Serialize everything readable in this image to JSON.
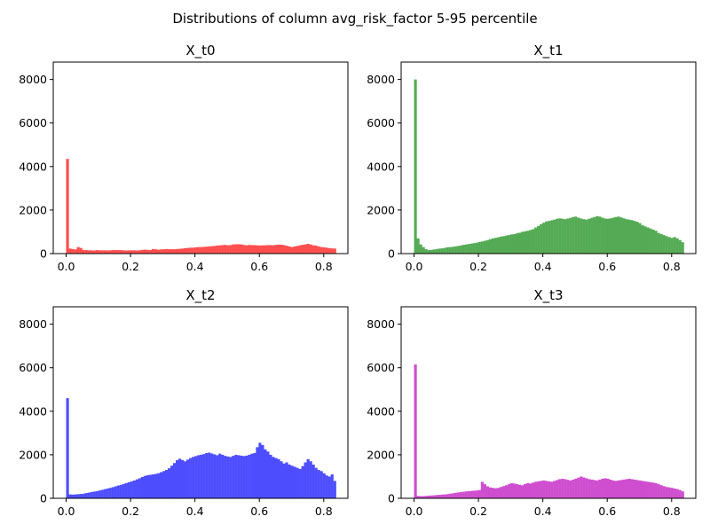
{
  "figure": {
    "title": "Distributions of column avg_risk_factor 5-95 percentile"
  },
  "chart_data": [
    {
      "type": "bar",
      "title": "X_t0",
      "color": "#ff4444",
      "xlim": [
        -0.04,
        0.875
      ],
      "ylim": [
        0,
        8800
      ],
      "xticks": [
        0.0,
        0.2,
        0.4,
        0.6,
        0.8
      ],
      "xtick_labels": [
        "0.0",
        "0.2",
        "0.4",
        "0.6",
        "0.8"
      ],
      "yticks": [
        0,
        2000,
        4000,
        6000,
        8000
      ],
      "ytick_labels": [
        "0",
        "2000",
        "4000",
        "6000",
        "8000"
      ],
      "bin_start": 0.0,
      "bin_width": 0.0083,
      "values": [
        4350,
        230,
        210,
        190,
        300,
        260,
        170,
        160,
        150,
        150,
        140,
        160,
        150,
        150,
        150,
        145,
        150,
        160,
        160,
        160,
        160,
        150,
        140,
        150,
        150,
        150,
        140,
        155,
        170,
        180,
        170,
        160,
        210,
        200,
        180,
        190,
        200,
        210,
        200,
        200,
        200,
        210,
        220,
        230,
        250,
        260,
        270,
        270,
        290,
        300,
        300,
        310,
        320,
        330,
        340,
        350,
        370,
        380,
        390,
        400,
        380,
        390,
        420,
        430,
        430,
        420,
        400,
        380,
        400,
        390,
        390,
        380,
        370,
        380,
        380,
        390,
        390,
        380,
        400,
        410,
        410,
        390,
        360,
        330,
        300,
        330,
        350,
        380,
        400,
        420,
        450,
        420,
        380,
        370,
        330,
        300,
        290,
        270,
        250,
        240,
        230
      ]
    },
    {
      "type": "bar",
      "title": "X_t1",
      "color": "#4ca64c",
      "xlim": [
        -0.04,
        0.875
      ],
      "ylim": [
        0,
        8800
      ],
      "xticks": [
        0.0,
        0.2,
        0.4,
        0.6,
        0.8
      ],
      "xtick_labels": [
        "0.0",
        "0.2",
        "0.4",
        "0.6",
        "0.8"
      ],
      "yticks": [
        0,
        2000,
        4000,
        6000,
        8000
      ],
      "ytick_labels": [
        "0",
        "2000",
        "4000",
        "6000",
        "8000"
      ],
      "bin_start": 0.0,
      "bin_width": 0.0083,
      "values": [
        8000,
        700,
        420,
        300,
        200,
        160,
        170,
        190,
        210,
        230,
        240,
        260,
        290,
        300,
        310,
        330,
        350,
        370,
        400,
        420,
        440,
        460,
        480,
        500,
        530,
        560,
        590,
        620,
        660,
        700,
        720,
        750,
        780,
        800,
        830,
        850,
        880,
        900,
        930,
        960,
        1000,
        1020,
        1050,
        1080,
        1120,
        1200,
        1270,
        1350,
        1420,
        1480,
        1500,
        1530,
        1560,
        1600,
        1620,
        1600,
        1580,
        1610,
        1640,
        1680,
        1700,
        1650,
        1610,
        1580,
        1560,
        1600,
        1640,
        1680,
        1720,
        1700,
        1650,
        1610,
        1600,
        1620,
        1650,
        1680,
        1700,
        1660,
        1620,
        1580,
        1560,
        1540,
        1500,
        1460,
        1400,
        1300,
        1250,
        1200,
        1150,
        1100,
        1050,
        950,
        900,
        850,
        800,
        760,
        720,
        760,
        700,
        620,
        520
      ]
    },
    {
      "type": "bar",
      "title": "X_t2",
      "color": "#4444ff",
      "xlim": [
        -0.04,
        0.875
      ],
      "ylim": [
        0,
        8800
      ],
      "xticks": [
        0.0,
        0.2,
        0.4,
        0.6,
        0.8
      ],
      "xtick_labels": [
        "0.0",
        "0.2",
        "0.4",
        "0.6",
        "0.8"
      ],
      "yticks": [
        0,
        2000,
        4000,
        6000,
        8000
      ],
      "ytick_labels": [
        "0",
        "2000",
        "4000",
        "6000",
        "8000"
      ],
      "bin_start": 0.0,
      "bin_width": 0.0083,
      "values": [
        4600,
        180,
        170,
        180,
        190,
        200,
        210,
        240,
        260,
        290,
        310,
        330,
        360,
        390,
        420,
        450,
        480,
        510,
        550,
        590,
        620,
        660,
        700,
        740,
        780,
        820,
        870,
        920,
        980,
        1030,
        1060,
        1080,
        1100,
        1120,
        1150,
        1200,
        1250,
        1300,
        1380,
        1500,
        1620,
        1750,
        1820,
        1760,
        1700,
        1780,
        1850,
        1900,
        1940,
        1980,
        2000,
        2030,
        2080,
        2100,
        2060,
        2020,
        1980,
        2050,
        2000,
        1950,
        1920,
        1900,
        1950,
        2000,
        1980,
        1960,
        1940,
        1960,
        2000,
        2050,
        2080,
        2350,
        2550,
        2450,
        2250,
        2150,
        2000,
        1900,
        1850,
        1800,
        1700,
        1600,
        1650,
        1550,
        1500,
        1450,
        1400,
        1350,
        1480,
        1650,
        1800,
        1700,
        1550,
        1400,
        1300,
        1250,
        1150,
        1050,
        1000,
        1100,
        800
      ]
    },
    {
      "type": "bar",
      "title": "X_t3",
      "color": "#cc44cc",
      "xlim": [
        -0.04,
        0.875
      ],
      "ylim": [
        0,
        8800
      ],
      "xticks": [
        0.0,
        0.2,
        0.4,
        0.6,
        0.8
      ],
      "xtick_labels": [
        "0.0",
        "0.2",
        "0.4",
        "0.6",
        "0.8"
      ],
      "yticks": [
        0,
        2000,
        4000,
        6000,
        8000
      ],
      "ytick_labels": [
        "0",
        "2000",
        "4000",
        "6000",
        "8000"
      ],
      "bin_start": 0.0,
      "bin_width": 0.0083,
      "values": [
        6150,
        110,
        100,
        100,
        110,
        120,
        130,
        140,
        150,
        160,
        170,
        180,
        190,
        210,
        230,
        250,
        270,
        290,
        300,
        320,
        330,
        340,
        350,
        360,
        380,
        760,
        650,
        550,
        500,
        480,
        460,
        480,
        520,
        560,
        600,
        650,
        700,
        680,
        650,
        620,
        600,
        650,
        700,
        680,
        720,
        760,
        780,
        800,
        820,
        800,
        780,
        760,
        800,
        840,
        880,
        900,
        880,
        850,
        820,
        860,
        900,
        950,
        1000,
        960,
        920,
        880,
        860,
        840,
        820,
        860,
        900,
        920,
        900,
        860,
        820,
        800,
        820,
        840,
        860,
        880,
        900,
        880,
        860,
        840,
        820,
        800,
        780,
        760,
        740,
        720,
        700,
        650,
        600,
        560,
        520,
        500,
        480,
        450,
        420,
        380,
        320
      ]
    }
  ]
}
